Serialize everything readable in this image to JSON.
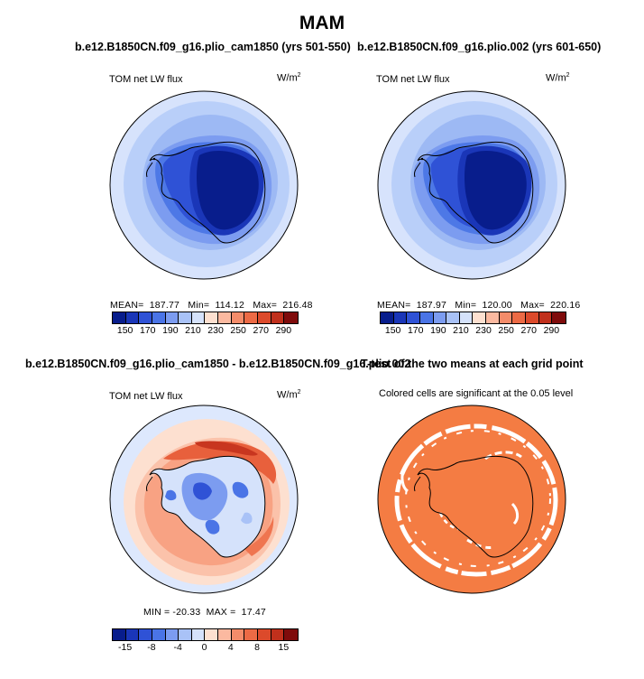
{
  "title": "MAM",
  "panels": [
    {
      "title": "b.e12.B1850CN.f09_g16.plio_cam1850 (yrs 501-550)",
      "subtitle": "TOM net LW flux",
      "units_base": "W/m",
      "units_sup": "2",
      "stats": "MEAN=  187.77   Min=  114.12   Max=  216.48",
      "colorbar": {
        "colors": [
          "#081d8c",
          "#1a36b8",
          "#2f52d6",
          "#4a74e6",
          "#7c9cf0",
          "#a9c2f7",
          "#d5e2fb",
          "#fde0d0",
          "#fbb9a0",
          "#f48c6a",
          "#ec6a45",
          "#dc4a2b",
          "#c0301c",
          "#7f0b0b"
        ],
        "ticks": [
          "150",
          "170",
          "190",
          "210",
          "230",
          "250",
          "270",
          "290"
        ]
      }
    },
    {
      "title": "b.e12.B1850CN.f09_g16.plio.002 (yrs 601-650)",
      "subtitle": "TOM net LW flux",
      "units_base": "W/m",
      "units_sup": "2",
      "stats": "MEAN=  187.97   Min=  120.00   Max=  220.16",
      "colorbar": {
        "colors": [
          "#081d8c",
          "#1a36b8",
          "#2f52d6",
          "#4a74e6",
          "#7c9cf0",
          "#a9c2f7",
          "#d5e2fb",
          "#fde0d0",
          "#fbb9a0",
          "#f48c6a",
          "#ec6a45",
          "#dc4a2b",
          "#c0301c",
          "#7f0b0b"
        ],
        "ticks": [
          "150",
          "170",
          "190",
          "210",
          "230",
          "250",
          "270",
          "290"
        ]
      }
    },
    {
      "title": "b.e12.B1850CN.f09_g16.plio_cam1850 - b.e12.B1850CN.f09_g16.plio.002",
      "subtitle": "TOM net LW flux",
      "units_base": "W/m",
      "units_sup": "2",
      "stats": "MIN = -20.33  MAX =  17.47",
      "colorbar": {
        "colors": [
          "#081d8c",
          "#1a36b8",
          "#2f52d6",
          "#4a74e6",
          "#7c9cf0",
          "#a9c2f7",
          "#d5e2fb",
          "#fde0d0",
          "#fbb9a0",
          "#f48c6a",
          "#ec6a45",
          "#dc4a2b",
          "#c0301c",
          "#7f0b0b"
        ],
        "ticks": [
          "-15",
          "-8",
          "-4",
          "0",
          "4",
          "8",
          "15"
        ]
      }
    },
    {
      "title": "T-test of the two means at each grid point",
      "subtitle": "Colored cells are significant at the 0.05 level",
      "fill_color": "#f47c43"
    }
  ],
  "chart_data": {
    "type": "heatmap",
    "projection": "south polar stereographic",
    "season": "MAM",
    "variable": "TOM net LW flux",
    "units": "W/m2",
    "fields": [
      {
        "case": "b.e12.B1850CN.f09_g16.plio_cam1850 (yrs 501-550)",
        "mean": 187.77,
        "min": 114.12,
        "max": 216.48,
        "contour_levels": [
          150,
          160,
          170,
          180,
          190,
          200,
          210,
          220,
          230,
          240,
          250,
          260,
          270,
          280,
          290
        ]
      },
      {
        "case": "b.e12.B1850CN.f09_g16.plio.002 (yrs 601-650)",
        "mean": 187.97,
        "min": 120.0,
        "max": 220.16,
        "contour_levels": [
          150,
          160,
          170,
          180,
          190,
          200,
          210,
          220,
          230,
          240,
          250,
          260,
          270,
          280,
          290
        ]
      },
      {
        "case": "difference",
        "min": -20.33,
        "max": 17.47,
        "contour_levels": [
          -15,
          -12,
          -8,
          -6,
          -4,
          -2,
          0,
          2,
          4,
          6,
          8,
          12,
          15
        ]
      },
      {
        "case": "t-test",
        "significance_level": 0.05
      }
    ]
  }
}
